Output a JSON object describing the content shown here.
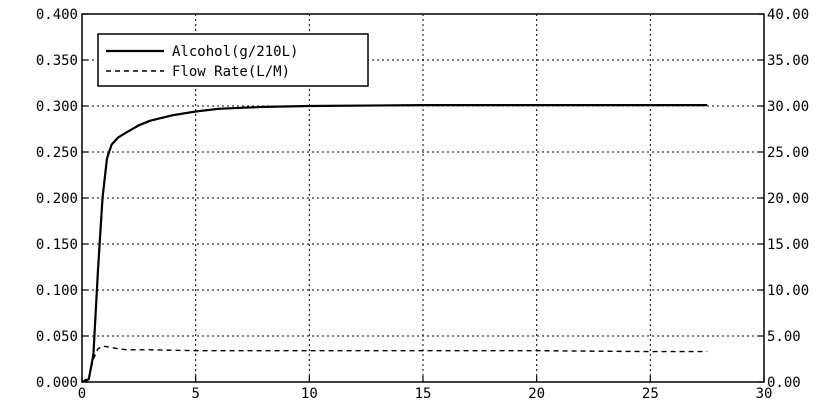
{
  "chart_data": {
    "type": "line",
    "title": "",
    "xlabel": "",
    "ylabel": "",
    "y2label": "",
    "xlim": [
      0,
      30
    ],
    "ylim": [
      0,
      0.4
    ],
    "y2lim": [
      0,
      40
    ],
    "grid": true,
    "legend_position": "top-left",
    "x_ticks": [
      "0",
      "5",
      "10",
      "15",
      "20",
      "25",
      "30"
    ],
    "y_ticks": [
      "0.000",
      "0.050",
      "0.100",
      "0.150",
      "0.200",
      "0.250",
      "0.300",
      "0.350",
      "0.400"
    ],
    "y2_ticks": [
      "0.00",
      "5.00",
      "10.00",
      "15.00",
      "20.00",
      "25.00",
      "30.00",
      "35.00",
      "40.00"
    ],
    "series": [
      {
        "name": "Alcohol(g/210L)",
        "axis": "left",
        "style": "solid",
        "color": "#000000",
        "x": [
          0,
          0.3,
          0.5,
          0.7,
          0.9,
          1.1,
          1.3,
          1.6,
          2,
          2.5,
          3,
          4,
          5,
          6,
          7,
          8,
          10,
          15,
          20,
          25,
          27.5
        ],
        "y": [
          0,
          0.003,
          0.03,
          0.12,
          0.2,
          0.243,
          0.258,
          0.266,
          0.272,
          0.279,
          0.284,
          0.29,
          0.294,
          0.297,
          0.298,
          0.299,
          0.3,
          0.301,
          0.301,
          0.301,
          0.301
        ]
      },
      {
        "name": "Flow Rate(L/M)",
        "axis": "right",
        "style": "dashed",
        "color": "#000000",
        "x": [
          0,
          0.3,
          0.5,
          0.7,
          0.9,
          1.2,
          1.6,
          2,
          3,
          5,
          8,
          10,
          15,
          20,
          25,
          27.5
        ],
        "y": [
          0,
          0.5,
          2.5,
          3.6,
          3.9,
          3.8,
          3.6,
          3.5,
          3.5,
          3.4,
          3.4,
          3.4,
          3.4,
          3.4,
          3.3,
          3.3
        ]
      }
    ]
  }
}
